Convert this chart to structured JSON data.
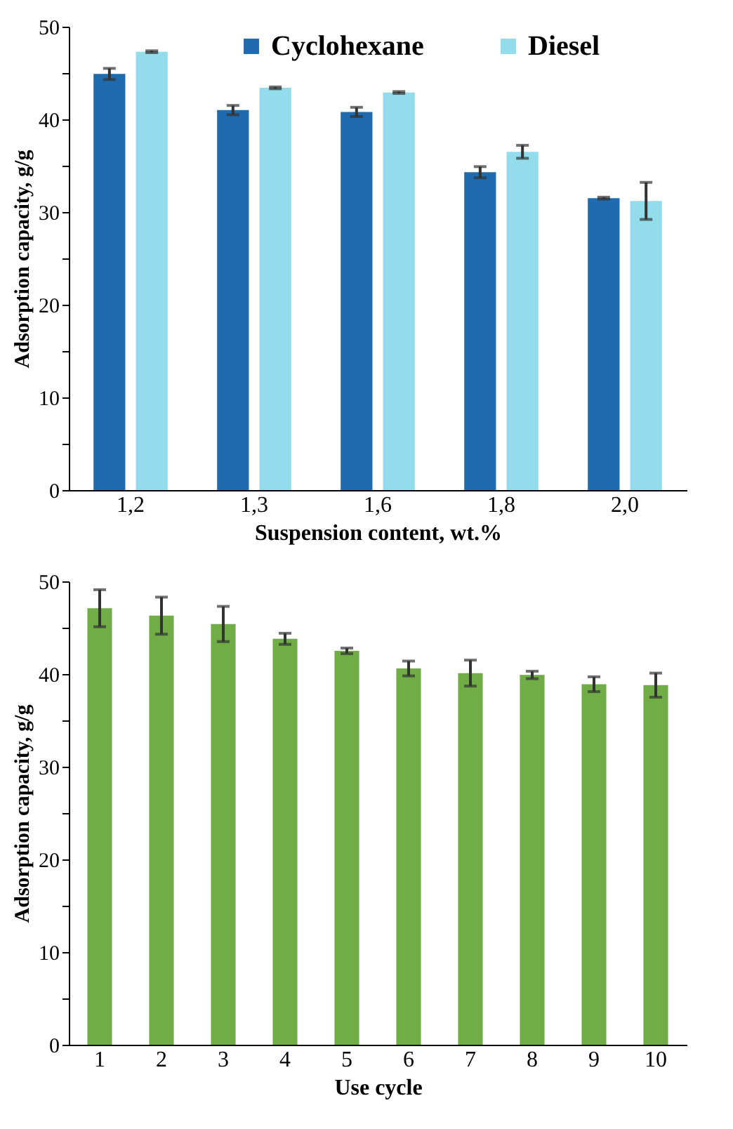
{
  "chart_data": [
    {
      "type": "bar",
      "xlabel": "Suspension content, wt.%",
      "ylabel": "Adsorption capacity, g/g",
      "categories": [
        "1,2",
        "1,3",
        "1,6",
        "1,8",
        "2,0"
      ],
      "series": [
        {
          "name": "Cyclohexane",
          "color": "#1f6bb0",
          "values": [
            44.9,
            41.0,
            40.8,
            34.3,
            31.5
          ],
          "errors": [
            0.6,
            0.5,
            0.5,
            0.6,
            0.1
          ]
        },
        {
          "name": "Diesel",
          "color": "#92dcec",
          "values": [
            47.3,
            43.4,
            42.9,
            36.5,
            31.2
          ],
          "errors": [
            0.1,
            0.1,
            0.1,
            0.7,
            2.0
          ]
        }
      ],
      "ylim": [
        0,
        50
      ],
      "yticks": [
        0,
        {
          "value": 5,
          "label": null
        },
        10,
        {
          "value": 15,
          "label": null
        },
        20,
        {
          "value": 25,
          "label": null
        },
        30,
        {
          "value": 35,
          "label": null
        },
        40,
        {
          "value": 45,
          "label": null
        },
        50
      ],
      "grid": false,
      "legend": "top"
    },
    {
      "type": "bar",
      "xlabel": "Use cycle",
      "ylabel": "Adsorption capacity, g/g",
      "categories": [
        "1",
        "2",
        "3",
        "4",
        "5",
        "6",
        "7",
        "8",
        "9",
        "10"
      ],
      "series": [
        {
          "color": "#70ad47",
          "values": [
            47.1,
            46.3,
            45.4,
            43.8,
            42.5,
            40.6,
            40.1,
            39.9,
            38.9,
            38.8
          ],
          "errors": [
            2.0,
            2.0,
            1.9,
            0.6,
            0.3,
            0.8,
            1.4,
            0.4,
            0.8,
            1.3
          ]
        }
      ],
      "ylim": [
        0,
        50
      ],
      "yticks": [
        0,
        {
          "value": 5,
          "label": null
        },
        10,
        {
          "value": 15,
          "label": null
        },
        20,
        {
          "value": 25,
          "label": null
        },
        30,
        {
          "value": 35,
          "label": null
        },
        40,
        {
          "value": 45,
          "label": null
        },
        50
      ],
      "grid": false,
      "legend": false
    }
  ]
}
